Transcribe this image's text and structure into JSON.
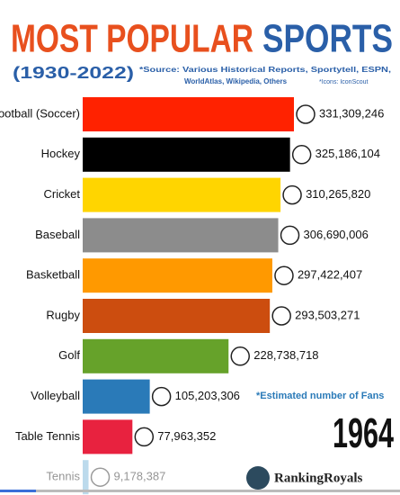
{
  "chart_data": {
    "type": "bar",
    "orientation": "horizontal",
    "title_part1": "MOST POPULAR",
    "title_part2": "SPORTS",
    "subtitle": "(1930-2022)",
    "source": "*Source: Various Historical Reports, Sportytell, ESPN,",
    "source_line2": "WorldAtlas, Wikipedia, Others",
    "icons_credit": "*Icons: IconScout",
    "note": "*Estimated number of Fans",
    "year": "1964",
    "brand": "RankingRoyals",
    "categories": [
      "Football (Soccer)",
      "Hockey",
      "Cricket",
      "Baseball",
      "Basketball",
      "Rugby",
      "Golf",
      "Volleyball",
      "Table Tennis",
      "Tennis"
    ],
    "values": [
      331309246,
      325186104,
      310265820,
      306690006,
      297422407,
      293503271,
      228738718,
      105203306,
      77963352,
      9178387
    ],
    "value_labels": [
      "331,309,246",
      "325,186,104",
      "310,265,820",
      "306,690,006",
      "297,422,407",
      "293,503,271",
      "228,738,718",
      "105,203,306",
      "77,963,352",
      "9,178,387"
    ],
    "colors": [
      "#ff2200",
      "#000000",
      "#ffd500",
      "#8c8c8c",
      "#ff9900",
      "#cc4d0f",
      "#66a22a",
      "#2a7ab8",
      "#e8223f",
      "#6aaed6"
    ]
  }
}
